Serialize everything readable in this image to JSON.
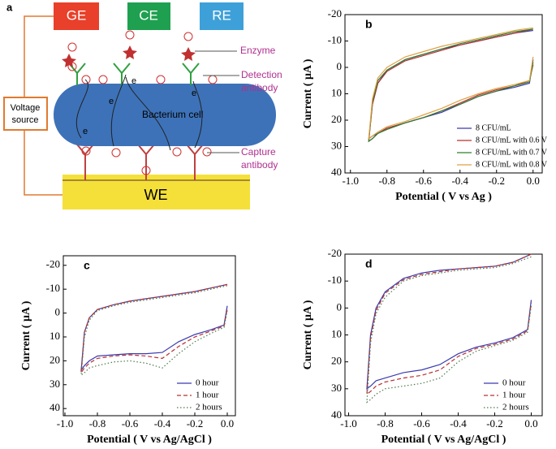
{
  "diagram": {
    "panel_label": "a",
    "electrodes": [
      "GE",
      "CE",
      "RE"
    ],
    "working_electrode": "WE",
    "voltage_source": [
      "Voltage",
      "source"
    ],
    "cell": "Bacterium cell",
    "electron": "e",
    "labels": {
      "enzyme": "Enzyme",
      "detection": [
        "Detection",
        "antibody"
      ],
      "capture": [
        "Capture",
        "antibody"
      ]
    }
  },
  "chart_data": [
    {
      "type": "line",
      "label": "b",
      "xlabel": "Potential ( V vs Ag )",
      "ylabel": "Current ( μA )",
      "xlim": [
        -1.03,
        0.05
      ],
      "ylim": [
        40,
        -20
      ],
      "xticks": [
        {
          "value": -1,
          "label": "-1.0"
        },
        -0.8,
        -0.6,
        -0.4,
        -0.2,
        {
          "value": 0,
          "label": "0.0"
        }
      ],
      "yticks": [
        -20,
        -10,
        0,
        10,
        20,
        30,
        40
      ],
      "legend": "lower right",
      "x": [
        0,
        -0.1,
        -0.2,
        -0.3,
        -0.4,
        -0.5,
        -0.6,
        -0.7,
        -0.8,
        -0.85,
        -0.88,
        -0.9,
        -0.88,
        -0.85,
        -0.8,
        -0.7,
        -0.6,
        -0.5,
        -0.4,
        -0.3,
        -0.2,
        -0.1,
        -0.02,
        0
      ],
      "series": [
        {
          "name": "8 CFU/mL",
          "color": "#3a3ab0",
          "dash": "solid",
          "values": [
            -14,
            -13,
            -11.5,
            -10,
            -8.5,
            -7,
            -5,
            -3,
            1,
            6,
            14,
            27,
            26,
            25,
            23,
            21,
            19,
            17,
            14,
            11,
            9,
            7.5,
            6,
            -3
          ]
        },
        {
          "name": "8 CFU/mL with 0.6 V",
          "color": "#b83030",
          "dash": "solid",
          "values": [
            -14.5,
            -13,
            -11.5,
            -10,
            -8.5,
            -6.5,
            -4.5,
            -2.5,
            1.5,
            6,
            14,
            28,
            27,
            25,
            23,
            21,
            19,
            16.5,
            13.5,
            10.5,
            8.5,
            7,
            5,
            -1
          ]
        },
        {
          "name": "8 CFU/mL with 0.7 V",
          "color": "#2e7d32",
          "dash": "solid",
          "values": [
            -14.5,
            -13.5,
            -12,
            -10.5,
            -9,
            -7,
            -5,
            -3,
            1,
            5,
            13,
            28,
            27,
            25,
            23.5,
            21,
            19,
            16.5,
            14,
            11,
            9,
            7,
            5.5,
            -2
          ]
        },
        {
          "name": "8 CFU/mL with 0.8 V",
          "color": "#e0a040",
          "dash": "solid",
          "values": [
            -15,
            -14,
            -12.5,
            -11,
            -9.5,
            -8,
            -6,
            -4,
            0,
            4,
            12,
            27,
            26,
            24.5,
            22.5,
            20.5,
            18,
            15.5,
            12.5,
            10,
            8,
            6.5,
            5,
            -4
          ]
        }
      ]
    },
    {
      "type": "line",
      "label": "c",
      "xlabel": "Potential ( V vs Ag/AgCl )",
      "ylabel": "Current ( μA )",
      "xlim": [
        -1.01,
        0.05
      ],
      "ylim": [
        43,
        -24
      ],
      "xticks": [
        {
          "value": -1,
          "label": "-1.0"
        },
        -0.8,
        -0.6,
        -0.4,
        -0.2,
        {
          "value": 0,
          "label": "0.0"
        }
      ],
      "yticks": [
        -20,
        -10,
        0,
        10,
        20,
        30,
        40
      ],
      "legend": "lower right",
      "x": [
        0,
        -0.1,
        -0.2,
        -0.3,
        -0.4,
        -0.5,
        -0.6,
        -0.7,
        -0.8,
        -0.85,
        -0.88,
        -0.9,
        -0.88,
        -0.85,
        -0.8,
        -0.7,
        -0.6,
        -0.5,
        -0.4,
        -0.3,
        -0.2,
        -0.1,
        -0.02,
        0
      ],
      "series": [
        {
          "name": "0 hour",
          "color": "#3a3ab0",
          "dash": "solid",
          "values": [
            -12,
            -10.5,
            -9,
            -8,
            -7,
            -6,
            -5,
            -3.5,
            -1.5,
            2,
            8,
            24,
            22,
            20,
            18,
            17.5,
            17,
            17,
            16.5,
            12,
            9,
            7,
            5,
            -3
          ]
        },
        {
          "name": "1 hour",
          "color": "#b83030",
          "dash": "dashed",
          "values": [
            -12,
            -10.5,
            -9,
            -8,
            -7,
            -6,
            -5,
            -3.5,
            -1.5,
            2,
            8,
            25,
            23,
            21,
            19,
            18,
            17.5,
            18,
            19,
            14,
            10,
            7.5,
            5.5,
            -2
          ]
        },
        {
          "name": "2 hours",
          "color": "#4a7a4a",
          "dash": "dotted",
          "values": [
            -11.5,
            -10,
            -8.5,
            -7.5,
            -6.5,
            -5.5,
            -4.5,
            -3,
            -1,
            3,
            10,
            26,
            25,
            23,
            22,
            20.5,
            20,
            21,
            23,
            17,
            12,
            8.5,
            6,
            -1
          ]
        }
      ]
    },
    {
      "type": "line",
      "label": "d",
      "xlabel": "Potential ( V vs Ag/AgCl )",
      "ylabel": "Current ( μA )",
      "xlim": [
        -1.02,
        0.06
      ],
      "ylim": [
        40,
        -20
      ],
      "xticks": [
        {
          "value": -1,
          "label": "-1.0"
        },
        -0.8,
        -0.6,
        -0.4,
        -0.2,
        {
          "value": 0,
          "label": "0.0"
        }
      ],
      "yticks": [
        -20,
        -10,
        0,
        10,
        20,
        30,
        40
      ],
      "legend": "lower right",
      "x": [
        0,
        -0.1,
        -0.2,
        -0.3,
        -0.4,
        -0.5,
        -0.6,
        -0.7,
        -0.8,
        -0.85,
        -0.88,
        -0.9,
        -0.88,
        -0.85,
        -0.8,
        -0.7,
        -0.6,
        -0.5,
        -0.4,
        -0.3,
        -0.2,
        -0.1,
        -0.02,
        0
      ],
      "series": [
        {
          "name": "0 hour",
          "color": "#3a3ab0",
          "dash": "solid",
          "values": [
            -20,
            -17,
            -15.5,
            -15,
            -14.5,
            -14,
            -13,
            -11,
            -6,
            0,
            10,
            30,
            29,
            27,
            26,
            24,
            23,
            21,
            17,
            14.5,
            13,
            11,
            8,
            -3
          ]
        },
        {
          "name": "1 hour",
          "color": "#b83030",
          "dash": "dashed",
          "values": [
            -20,
            -17,
            -15.5,
            -15,
            -14.5,
            -13.5,
            -12.5,
            -10.5,
            -5.5,
            1,
            11,
            32,
            31,
            29,
            27.5,
            26,
            25,
            23,
            18,
            15,
            13.5,
            11.5,
            8.5,
            -2
          ]
        },
        {
          "name": "2 hours",
          "color": "#4a7a4a",
          "dash": "dotted",
          "values": [
            -19,
            -16.5,
            -15,
            -14.5,
            -14,
            -13,
            -12,
            -10,
            -4,
            2,
            13,
            35,
            34,
            32,
            30,
            29,
            28,
            26,
            20,
            16,
            14,
            12,
            9,
            -1
          ]
        }
      ]
    }
  ]
}
